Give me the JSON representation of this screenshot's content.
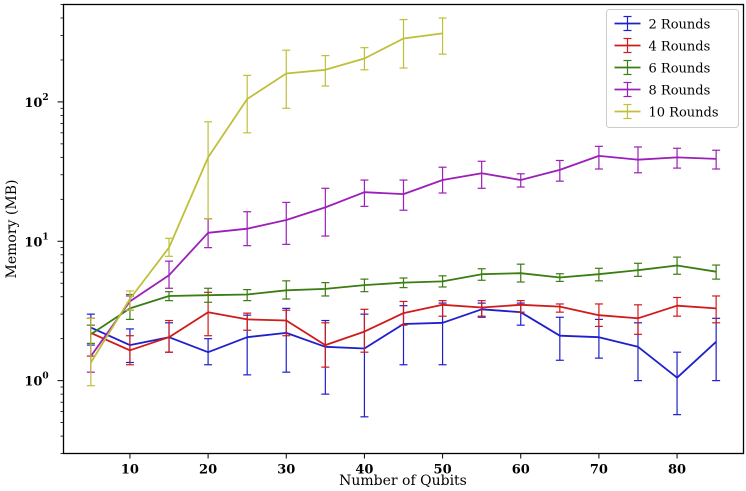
{
  "chart_data": {
    "type": "line",
    "title": "",
    "xlabel": "Number of Qubits",
    "ylabel": "Memory (MB)",
    "yscale": "log",
    "xlim": [
      1.5,
      88.5
    ],
    "ylim": [
      0.3,
      500
    ],
    "xticks": [
      10,
      20,
      30,
      40,
      50,
      60,
      70,
      80
    ],
    "xtick_labels": [
      "10",
      "20",
      "30",
      "40",
      "50",
      "60",
      "70",
      "80"
    ],
    "yticks": [
      1,
      10,
      100
    ],
    "ytick_labels": [
      {
        "base": "10",
        "exp": "0"
      },
      {
        "base": "10",
        "exp": "1"
      },
      {
        "base": "10",
        "exp": "2"
      }
    ],
    "legend_position": "top-right",
    "error_bars": true,
    "series": [
      {
        "name": "2 Rounds",
        "color": "#1f1fcc",
        "x": [
          5,
          10,
          15,
          20,
          25,
          30,
          35,
          40,
          45,
          50,
          55,
          60,
          65,
          70,
          75,
          80,
          85
        ],
        "y": [
          2.4,
          1.8,
          2.05,
          1.6,
          2.05,
          2.2,
          1.75,
          1.7,
          2.55,
          2.6,
          3.25,
          3.1,
          2.1,
          2.05,
          1.75,
          1.05,
          1.9
        ],
        "low": [
          1.8,
          1.35,
          1.6,
          1.3,
          1.1,
          1.15,
          0.8,
          0.55,
          1.3,
          1.3,
          2.85,
          2.5,
          1.4,
          1.45,
          1.0,
          0.57,
          1.0
        ],
        "high": [
          3.0,
          2.35,
          2.6,
          2.0,
          2.95,
          3.3,
          2.7,
          3.0,
          3.45,
          3.6,
          3.6,
          3.6,
          2.85,
          2.75,
          2.6,
          1.6,
          2.8
        ]
      },
      {
        "name": "4 Rounds",
        "color": "#d11a1a",
        "x": [
          5,
          10,
          15,
          20,
          25,
          30,
          35,
          40,
          45,
          50,
          55,
          60,
          65,
          70,
          75,
          80,
          85
        ],
        "y": [
          2.2,
          1.65,
          2.05,
          3.1,
          2.75,
          2.7,
          1.8,
          2.25,
          3.05,
          3.5,
          3.35,
          3.5,
          3.4,
          2.95,
          2.8,
          3.45,
          3.3
        ],
        "low": [
          1.5,
          1.3,
          1.6,
          2.1,
          2.3,
          2.1,
          1.25,
          1.6,
          2.5,
          2.9,
          2.9,
          3.1,
          3.1,
          2.45,
          2.15,
          2.9,
          2.6
        ],
        "high": [
          2.8,
          2.1,
          2.7,
          4.3,
          3.05,
          3.2,
          2.6,
          3.25,
          3.7,
          3.75,
          3.75,
          3.75,
          3.55,
          3.55,
          3.5,
          3.95,
          4.05
        ]
      },
      {
        "name": "6 Rounds",
        "color": "#3a7d12",
        "x": [
          5,
          10,
          15,
          20,
          25,
          30,
          35,
          40,
          45,
          50,
          55,
          60,
          65,
          70,
          75,
          80,
          85
        ],
        "y": [
          2.15,
          3.3,
          4.05,
          4.1,
          4.15,
          4.45,
          4.55,
          4.85,
          5.05,
          5.15,
          5.8,
          5.9,
          5.5,
          5.8,
          6.2,
          6.7,
          6.05
        ],
        "low": [
          1.85,
          2.75,
          3.75,
          3.65,
          3.75,
          3.85,
          4.05,
          4.35,
          4.65,
          4.7,
          5.25,
          5.1,
          5.15,
          5.2,
          5.6,
          5.8,
          5.35
        ],
        "high": [
          2.5,
          4.15,
          4.35,
          4.6,
          4.5,
          5.2,
          5.05,
          5.35,
          5.45,
          5.65,
          6.35,
          6.85,
          5.85,
          6.4,
          6.95,
          7.7,
          6.75
        ]
      },
      {
        "name": "8 Rounds",
        "color": "#9b1fb8",
        "x": [
          5,
          10,
          15,
          20,
          25,
          30,
          35,
          40,
          45,
          50,
          55,
          60,
          65,
          70,
          75,
          80,
          85
        ],
        "y": [
          1.5,
          3.7,
          5.7,
          11.5,
          12.3,
          14.2,
          17.5,
          22.5,
          21.8,
          27.5,
          30.8,
          27.5,
          32.5,
          41.0,
          38.5,
          40.0,
          39.0
        ],
        "low": [
          1.15,
          3.2,
          4.6,
          9.0,
          9.3,
          9.5,
          10.9,
          17.8,
          16.7,
          22.2,
          24.0,
          24.5,
          27.0,
          33.0,
          31.0,
          33.5,
          33.0
        ],
        "high": [
          2.8,
          4.05,
          7.2,
          14.5,
          16.3,
          19.0,
          24.0,
          27.5,
          27.5,
          34.0,
          37.5,
          30.5,
          38.0,
          48.0,
          47.5,
          46.5,
          45.0
        ]
      },
      {
        "name": "10 Rounds",
        "color": "#bfbf3a",
        "x": [
          5,
          10,
          15,
          20,
          25,
          30,
          35,
          40,
          45,
          50
        ],
        "y": [
          1.35,
          3.85,
          9.0,
          40.0,
          105.0,
          160.0,
          170.0,
          205.0,
          285.0,
          310.0
        ],
        "low": [
          0.92,
          3.2,
          7.8,
          14.5,
          60.0,
          90.0,
          130.0,
          170.0,
          175.0,
          220.0
        ],
        "high": [
          2.8,
          4.4,
          10.5,
          72.0,
          155.0,
          235.0,
          215.0,
          245.0,
          390.0,
          400.0
        ]
      }
    ]
  }
}
